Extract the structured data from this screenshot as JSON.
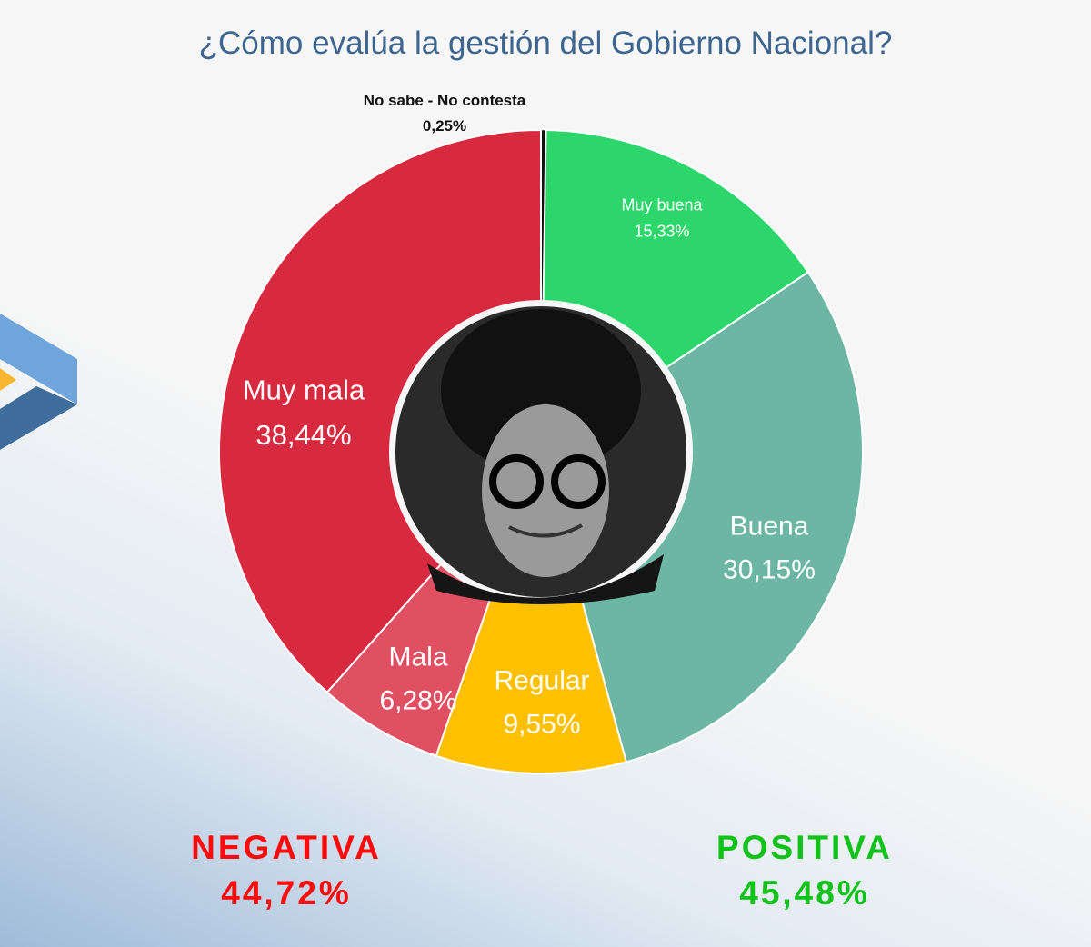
{
  "chart_data": {
    "type": "pie",
    "variant": "donut",
    "title": "¿Cómo evalúa la gestión del Gobierno Nacional?",
    "slices": [
      {
        "label": "No sabe - No contesta",
        "value": 0.25,
        "value_label": "0,25%",
        "color": "#111111"
      },
      {
        "label": "Muy buena",
        "value": 15.33,
        "value_label": "15,33%",
        "color": "#2dd66a"
      },
      {
        "label": "Buena",
        "value": 30.15,
        "value_label": "30,15%",
        "color": "#6cb6a3"
      },
      {
        "label": "Regular",
        "value": 9.55,
        "value_label": "9,55%",
        "color": "#ffc000"
      },
      {
        "label": "Mala",
        "value": 6.28,
        "value_label": "6,28%",
        "color": "#df5162"
      },
      {
        "label": "Muy mala",
        "value": 38.44,
        "value_label": "38,44%",
        "color": "#d82a3e"
      }
    ],
    "start": "top",
    "direction": "clockwise",
    "center_image": "black-and-white portrait photo",
    "summary": {
      "negative": {
        "label": "NEGATIVA",
        "value": "44,72%",
        "color": "#ff0a0a"
      },
      "positive": {
        "label": "POSITIVA",
        "value": "45,48%",
        "color": "#10c21a"
      }
    }
  },
  "logo": {
    "colors": [
      "#6fa5dc",
      "#3f6e9c",
      "#f8b630"
    ]
  }
}
